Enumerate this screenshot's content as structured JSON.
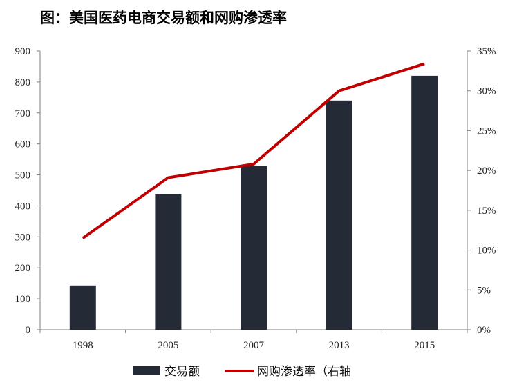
{
  "chart_data": {
    "type": "bar",
    "title": "图：美国医药电商交易额和网购渗透率",
    "categories": [
      "1998",
      "2005",
      "2007",
      "2013",
      "2015"
    ],
    "series": [
      {
        "name": "交易额",
        "type": "bar",
        "axis": "left",
        "color": "#252b36",
        "values": [
          143,
          437,
          529,
          740,
          820
        ]
      },
      {
        "name": "网购渗透率（右轴",
        "type": "line",
        "axis": "right",
        "color": "#c00000",
        "values": [
          11.5,
          19.1,
          20.8,
          30.0,
          33.4
        ]
      }
    ],
    "left_axis": {
      "ylim": [
        0,
        900
      ],
      "ticks": [
        "0",
        "100",
        "200",
        "300",
        "400",
        "500",
        "600",
        "700",
        "800",
        "900"
      ]
    },
    "right_axis": {
      "ylim": [
        0,
        35
      ],
      "ticks": [
        "0%",
        "5%",
        "10%",
        "15%",
        "20%",
        "25%",
        "30%",
        "35%"
      ]
    },
    "grid": false,
    "legend_position": "bottom"
  }
}
